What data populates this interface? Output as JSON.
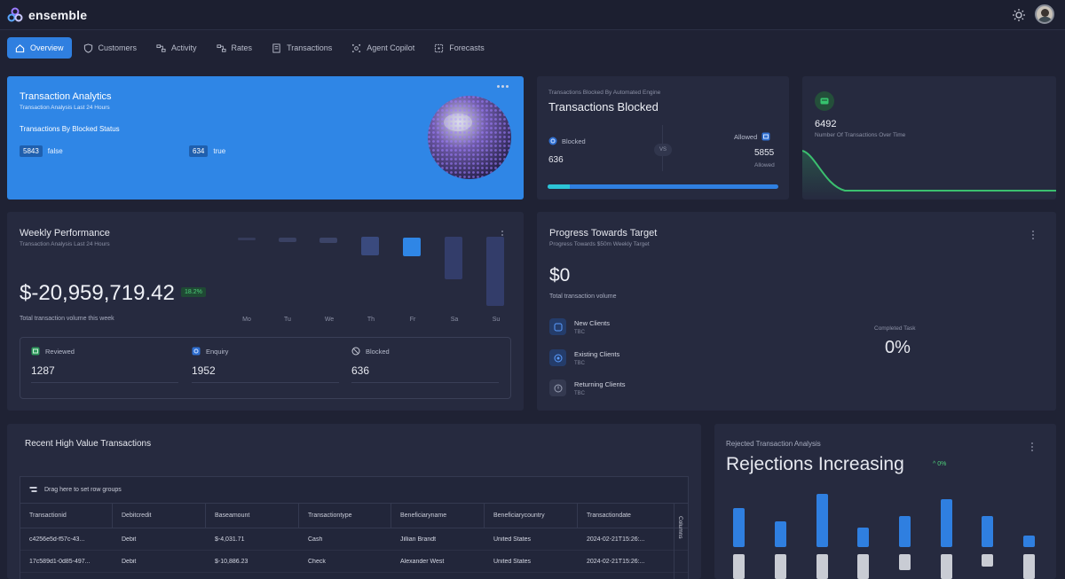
{
  "app": {
    "name": "ensemble"
  },
  "nav": [
    {
      "label": "Overview",
      "icon": "home-icon",
      "active": true
    },
    {
      "label": "Customers",
      "icon": "shield-icon"
    },
    {
      "label": "Activity",
      "icon": "activity-icon"
    },
    {
      "label": "Rates",
      "icon": "rates-icon"
    },
    {
      "label": "Transactions",
      "icon": "document-icon"
    },
    {
      "label": "Agent Copilot",
      "icon": "copilot-icon"
    },
    {
      "label": "Forecasts",
      "icon": "forecast-icon"
    }
  ],
  "analytics": {
    "title": "Transaction Analytics",
    "subtitle": "Transaction Analysis Last 24 Hours",
    "block_title": "Transactions By Blocked Status",
    "items": [
      {
        "count": "5843",
        "label": "false"
      },
      {
        "count": "634",
        "label": "true"
      }
    ]
  },
  "blocked": {
    "subtitle": "Transactions Blocked By Automated Engine",
    "title": "Transactions Blocked",
    "blocked_label": "Blocked",
    "blocked_value": "636",
    "vs": "VS",
    "allowed_label": "Allowed",
    "allowed_value": "5855",
    "allowed_caption": "Allowed",
    "blocked_share": 0.098
  },
  "count": {
    "value": "6492",
    "caption": "Number Of Transactions Over Time"
  },
  "weekly": {
    "title": "Weekly Performance",
    "subtitle": "Transaction Analysis Last 24 Hours",
    "amount": "$-20,959,719.42",
    "change": "18.2%",
    "caption": "Total transaction volume this week",
    "days": [
      "Mo",
      "Tu",
      "We",
      "Th",
      "Fr",
      "Sa",
      "Su"
    ],
    "stats": [
      {
        "label": "Reviewed",
        "value": "1287"
      },
      {
        "label": "Enquiry",
        "value": "1952"
      },
      {
        "label": "Blocked",
        "value": "636"
      }
    ]
  },
  "progress": {
    "title": "Progress Towards Target",
    "subtitle": "Progress Towards $50m Weekly Target",
    "amount": "$0",
    "caption": "Total transaction volume",
    "clients": [
      {
        "name": "New Clients",
        "value": "TBC"
      },
      {
        "name": "Existing Clients",
        "value": "TBC"
      },
      {
        "name": "Returning Clients",
        "value": "TBC"
      }
    ],
    "completed_label": "Completed Task",
    "completed_value": "0%"
  },
  "recent": {
    "title": "Recent High Value Transactions",
    "group_hint": "Drag here to set row groups",
    "columns_label": "Columns",
    "headers": [
      "Transactionid",
      "Debitcredit",
      "Baseamount",
      "Transactiontype",
      "Beneficiaryname",
      "Beneficiarycountry",
      "Transactiondate"
    ],
    "rows": [
      [
        "c4256e5d-f57c-43...",
        "Debit",
        "$-4,031.71",
        "Cash",
        "Jillian Brandt",
        "United States",
        "2024-02-21T15:26:..."
      ],
      [
        "17c589d1-0d85-497...",
        "Debit",
        "$-10,886.23",
        "Check",
        "Alexander West",
        "United States",
        "2024-02-21T15:26:..."
      ]
    ]
  },
  "reject": {
    "subtitle": "Rejected Transaction Analysis",
    "title": "Rejections Increasing",
    "trend": "0%"
  }
}
